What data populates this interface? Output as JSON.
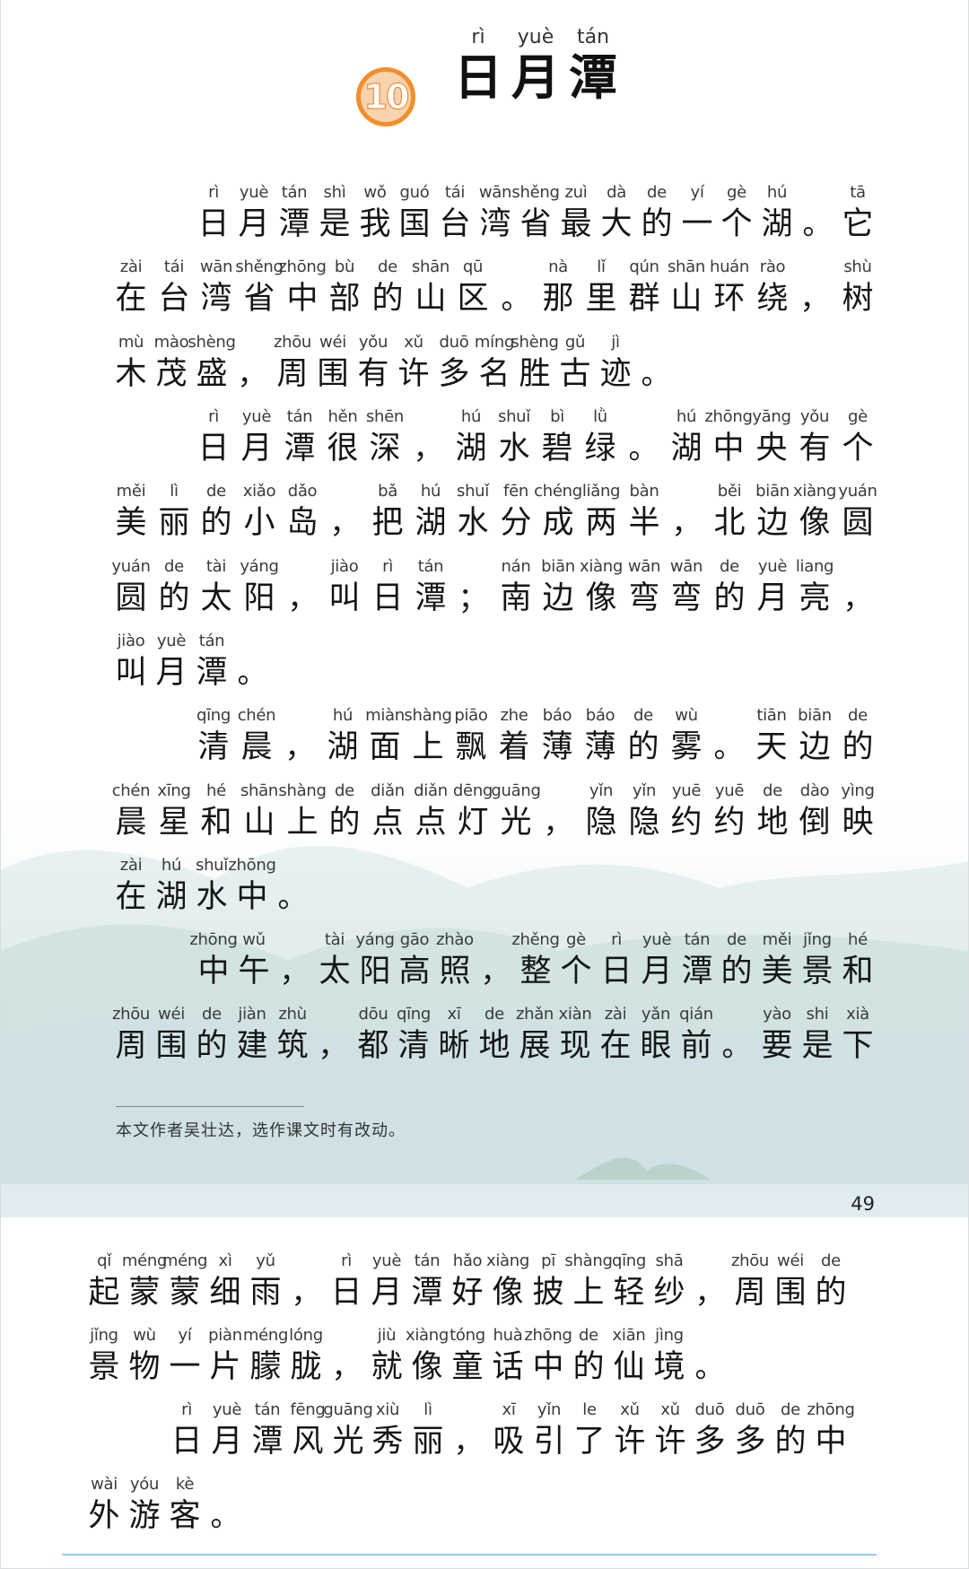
{
  "lesson": {
    "number": "10",
    "title": [
      {
        "py": "rì",
        "hz": "日"
      },
      {
        "py": "yuè",
        "hz": "月"
      },
      {
        "py": "tán",
        "hz": "潭"
      }
    ]
  },
  "page1_lines": [
    [
      [
        "rì",
        "日"
      ],
      [
        "yuè",
        "月"
      ],
      [
        "tán",
        "潭"
      ],
      [
        "shì",
        "是"
      ],
      [
        "wǒ",
        "我"
      ],
      [
        "guó",
        "国"
      ],
      [
        "tái",
        "台"
      ],
      [
        "wān",
        "湾"
      ],
      [
        "shěng",
        "省"
      ],
      [
        "zuì",
        "最"
      ],
      [
        "dà",
        "大"
      ],
      [
        "de",
        "的"
      ],
      [
        "yí",
        "一"
      ],
      [
        "gè",
        "个"
      ],
      [
        "hú",
        "湖"
      ],
      [
        "",
        "。"
      ],
      [
        "tā",
        "它"
      ]
    ],
    [
      [
        "zài",
        "在"
      ],
      [
        "tái",
        "台"
      ],
      [
        "wān",
        "湾"
      ],
      [
        "shěng",
        "省"
      ],
      [
        "zhōng",
        "中"
      ],
      [
        "bù",
        "部"
      ],
      [
        "de",
        "的"
      ],
      [
        "shān",
        "山"
      ],
      [
        "qū",
        "区"
      ],
      [
        "",
        "。"
      ],
      [
        "nà",
        "那"
      ],
      [
        "lǐ",
        "里"
      ],
      [
        "qún",
        "群"
      ],
      [
        "shān",
        "山"
      ],
      [
        "huán",
        "环"
      ],
      [
        "rào",
        "绕"
      ],
      [
        "",
        "，"
      ],
      [
        "shù",
        "树"
      ]
    ],
    [
      [
        "mù",
        "木"
      ],
      [
        "mào",
        "茂"
      ],
      [
        "shèng",
        "盛"
      ],
      [
        "",
        "，"
      ],
      [
        "zhōu",
        "周"
      ],
      [
        "wéi",
        "围"
      ],
      [
        "yǒu",
        "有"
      ],
      [
        "xǔ",
        "许"
      ],
      [
        "duō",
        "多"
      ],
      [
        "míng",
        "名"
      ],
      [
        "shèng",
        "胜"
      ],
      [
        "gǔ",
        "古"
      ],
      [
        "jì",
        "迹"
      ],
      [
        "",
        "。"
      ]
    ],
    [
      [
        "rì",
        "日"
      ],
      [
        "yuè",
        "月"
      ],
      [
        "tán",
        "潭"
      ],
      [
        "hěn",
        "很"
      ],
      [
        "shēn",
        "深"
      ],
      [
        "",
        "，"
      ],
      [
        "hú",
        "湖"
      ],
      [
        "shuǐ",
        "水"
      ],
      [
        "bì",
        "碧"
      ],
      [
        "lǜ",
        "绿"
      ],
      [
        "",
        "。"
      ],
      [
        "hú",
        "湖"
      ],
      [
        "zhōng",
        "中"
      ],
      [
        "yāng",
        "央"
      ],
      [
        "yǒu",
        "有"
      ],
      [
        "gè",
        "个"
      ]
    ],
    [
      [
        "měi",
        "美"
      ],
      [
        "lì",
        "丽"
      ],
      [
        "de",
        "的"
      ],
      [
        "xiǎo",
        "小"
      ],
      [
        "dǎo",
        "岛"
      ],
      [
        "",
        "，"
      ],
      [
        "bǎ",
        "把"
      ],
      [
        "hú",
        "湖"
      ],
      [
        "shuǐ",
        "水"
      ],
      [
        "fēn",
        "分"
      ],
      [
        "chéng",
        "成"
      ],
      [
        "liǎng",
        "两"
      ],
      [
        "bàn",
        "半"
      ],
      [
        "",
        "，"
      ],
      [
        "běi",
        "北"
      ],
      [
        "biān",
        "边"
      ],
      [
        "xiàng",
        "像"
      ],
      [
        "yuán",
        "圆"
      ]
    ],
    [
      [
        "yuán",
        "圆"
      ],
      [
        "de",
        "的"
      ],
      [
        "tài",
        "太"
      ],
      [
        "yáng",
        "阳"
      ],
      [
        "",
        "，"
      ],
      [
        "jiào",
        "叫"
      ],
      [
        "rì",
        "日"
      ],
      [
        "tán",
        "潭"
      ],
      [
        "",
        "；"
      ],
      [
        "nán",
        "南"
      ],
      [
        "biān",
        "边"
      ],
      [
        "xiàng",
        "像"
      ],
      [
        "wān",
        "弯"
      ],
      [
        "wān",
        "弯"
      ],
      [
        "de",
        "的"
      ],
      [
        "yuè",
        "月"
      ],
      [
        "liang",
        "亮"
      ],
      [
        "",
        "，"
      ]
    ],
    [
      [
        "jiào",
        "叫"
      ],
      [
        "yuè",
        "月"
      ],
      [
        "tán",
        "潭"
      ],
      [
        "",
        "。"
      ]
    ],
    [
      [
        "qīng",
        "清"
      ],
      [
        "chén",
        "晨"
      ],
      [
        "",
        "，"
      ],
      [
        "hú",
        "湖"
      ],
      [
        "miàn",
        "面"
      ],
      [
        "shàng",
        "上"
      ],
      [
        "piāo",
        "飘"
      ],
      [
        "zhe",
        "着"
      ],
      [
        "báo",
        "薄"
      ],
      [
        "báo",
        "薄"
      ],
      [
        "de",
        "的"
      ],
      [
        "wù",
        "雾"
      ],
      [
        "",
        "。"
      ],
      [
        "tiān",
        "天"
      ],
      [
        "biān",
        "边"
      ],
      [
        "de",
        "的"
      ]
    ],
    [
      [
        "chén",
        "晨"
      ],
      [
        "xīng",
        "星"
      ],
      [
        "hé",
        "和"
      ],
      [
        "shān",
        "山"
      ],
      [
        "shàng",
        "上"
      ],
      [
        "de",
        "的"
      ],
      [
        "diǎn",
        "点"
      ],
      [
        "diǎn",
        "点"
      ],
      [
        "dēng",
        "灯"
      ],
      [
        "guāng",
        "光"
      ],
      [
        "",
        "，"
      ],
      [
        "yǐn",
        "隐"
      ],
      [
        "yǐn",
        "隐"
      ],
      [
        "yuē",
        "约"
      ],
      [
        "yuē",
        "约"
      ],
      [
        "de",
        "地"
      ],
      [
        "dào",
        "倒"
      ],
      [
        "yìng",
        "映"
      ]
    ],
    [
      [
        "zài",
        "在"
      ],
      [
        "hú",
        "湖"
      ],
      [
        "shuǐ",
        "水"
      ],
      [
        "zhōng",
        "中"
      ],
      [
        "",
        "。"
      ]
    ],
    [
      [
        "zhōng",
        "中"
      ],
      [
        "wǔ",
        "午"
      ],
      [
        "",
        "，"
      ],
      [
        "tài",
        "太"
      ],
      [
        "yáng",
        "阳"
      ],
      [
        "gāo",
        "高"
      ],
      [
        "zhào",
        "照"
      ],
      [
        "",
        "，"
      ],
      [
        "zhěng",
        "整"
      ],
      [
        "gè",
        "个"
      ],
      [
        "rì",
        "日"
      ],
      [
        "yuè",
        "月"
      ],
      [
        "tán",
        "潭"
      ],
      [
        "de",
        "的"
      ],
      [
        "měi",
        "美"
      ],
      [
        "jǐng",
        "景"
      ],
      [
        "hé",
        "和"
      ]
    ],
    [
      [
        "zhōu",
        "周"
      ],
      [
        "wéi",
        "围"
      ],
      [
        "de",
        "的"
      ],
      [
        "jiàn",
        "建"
      ],
      [
        "zhù",
        "筑"
      ],
      [
        "",
        "，"
      ],
      [
        "dōu",
        "都"
      ],
      [
        "qīng",
        "清"
      ],
      [
        "xī",
        "晰"
      ],
      [
        "de",
        "地"
      ],
      [
        "zhǎn",
        "展"
      ],
      [
        "xiàn",
        "现"
      ],
      [
        "zài",
        "在"
      ],
      [
        "yǎn",
        "眼"
      ],
      [
        "qián",
        "前"
      ],
      [
        "",
        "。"
      ],
      [
        "yào",
        "要"
      ],
      [
        "shi",
        "是"
      ],
      [
        "xià",
        "下"
      ]
    ]
  ],
  "footnote": "本文作者吴壮达，选作课文时有改动。",
  "page_number": "49",
  "page2_lines": [
    [
      [
        "qǐ",
        "起"
      ],
      [
        "méng",
        "蒙"
      ],
      [
        "méng",
        "蒙"
      ],
      [
        "xì",
        "细"
      ],
      [
        "yǔ",
        "雨"
      ],
      [
        "",
        "，"
      ],
      [
        "rì",
        "日"
      ],
      [
        "yuè",
        "月"
      ],
      [
        "tán",
        "潭"
      ],
      [
        "hǎo",
        "好"
      ],
      [
        "xiàng",
        "像"
      ],
      [
        "pī",
        "披"
      ],
      [
        "shàng",
        "上"
      ],
      [
        "qīng",
        "轻"
      ],
      [
        "shā",
        "纱"
      ],
      [
        "",
        "，"
      ],
      [
        "zhōu",
        "周"
      ],
      [
        "wéi",
        "围"
      ],
      [
        "de",
        "的"
      ]
    ],
    [
      [
        "jǐng",
        "景"
      ],
      [
        "wù",
        "物"
      ],
      [
        "yí",
        "一"
      ],
      [
        "piàn",
        "片"
      ],
      [
        "méng",
        "朦"
      ],
      [
        "lóng",
        "胧"
      ],
      [
        "",
        "，"
      ],
      [
        "jiù",
        "就"
      ],
      [
        "xiàng",
        "像"
      ],
      [
        "tóng",
        "童"
      ],
      [
        "huà",
        "话"
      ],
      [
        "zhōng",
        "中"
      ],
      [
        "de",
        "的"
      ],
      [
        "xiān",
        "仙"
      ],
      [
        "jìng",
        "境"
      ],
      [
        "",
        "。"
      ]
    ],
    [
      [
        "rì",
        "日"
      ],
      [
        "yuè",
        "月"
      ],
      [
        "tán",
        "潭"
      ],
      [
        "fēng",
        "风"
      ],
      [
        "guāng",
        "光"
      ],
      [
        "xiù",
        "秀"
      ],
      [
        "lì",
        "丽"
      ],
      [
        "",
        "，"
      ],
      [
        "xī",
        "吸"
      ],
      [
        "yǐn",
        "引"
      ],
      [
        "le",
        "了"
      ],
      [
        "xǔ",
        "许"
      ],
      [
        "xǔ",
        "许"
      ],
      [
        "duō",
        "多"
      ],
      [
        "duō",
        "多"
      ],
      [
        "de",
        "的"
      ],
      [
        "zhōng",
        "中"
      ]
    ],
    [
      [
        "wài",
        "外"
      ],
      [
        "yóu",
        "游"
      ],
      [
        "kè",
        "客"
      ],
      [
        "",
        "。"
      ]
    ]
  ],
  "colors": {
    "badge_orange": "#f28e2b",
    "rule_blue": "#8fd0f2"
  }
}
